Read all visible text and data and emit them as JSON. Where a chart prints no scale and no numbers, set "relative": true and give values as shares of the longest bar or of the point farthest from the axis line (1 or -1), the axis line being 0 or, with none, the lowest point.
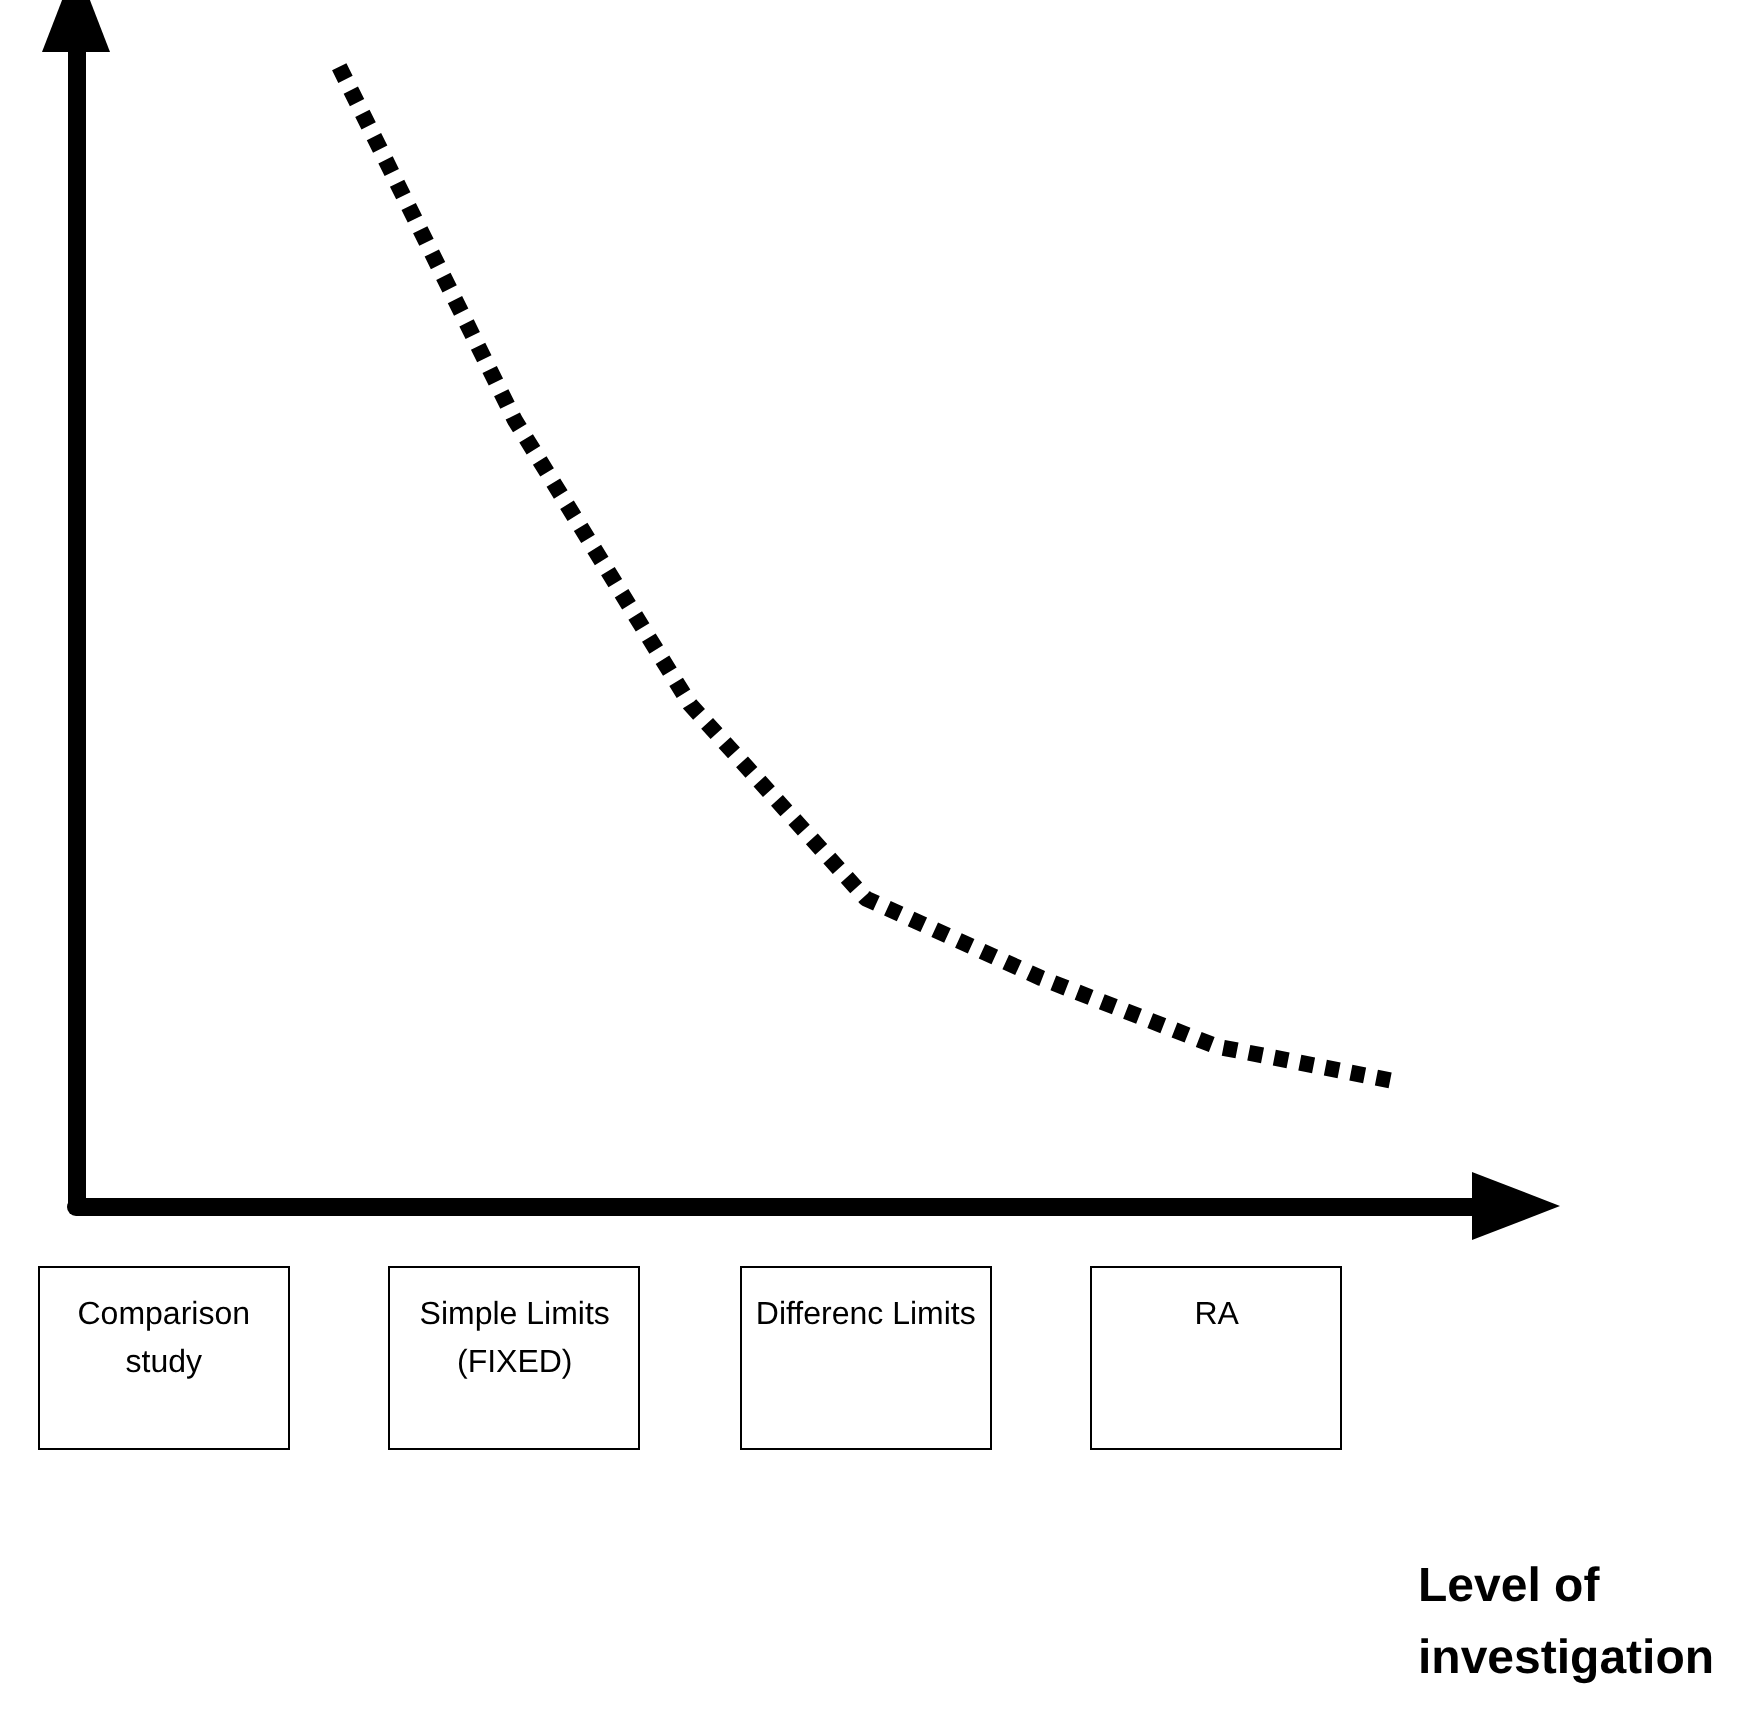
{
  "chart_data": {
    "type": "line",
    "relative": true,
    "xlabel": "Level of investigation",
    "categories": [
      "Comparison study",
      null,
      "Simple Limits (FIXED)",
      null,
      "Differenc Limits",
      null,
      "RA",
      null
    ],
    "series": [
      {
        "color": "#000000",
        "values": [
          null,
          1,
          0.69,
          0.44,
          0.27,
          0.2,
          0.14,
          0.11
        ]
      }
    ],
    "line_style": "dotted",
    "marker": "none",
    "grid": false
  }
}
